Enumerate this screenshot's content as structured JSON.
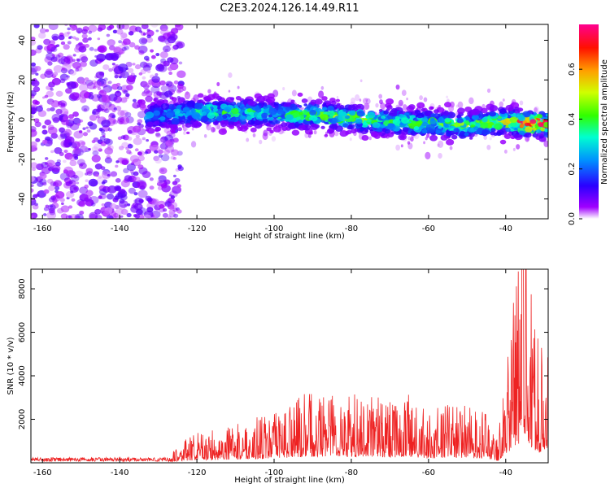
{
  "figure": {
    "title": "C2E3.2024.126.14.49.R11"
  },
  "chart_data": [
    {
      "type": "heatmap",
      "xlabel": "Height of straight line (km)",
      "ylabel": "Frequency (Hz)",
      "xlim": [
        -163,
        -29
      ],
      "ylim": [
        -50,
        48
      ],
      "xticks": [
        -160,
        -140,
        -120,
        -100,
        -80,
        -60,
        -40
      ],
      "yticks": [
        -40,
        -20,
        0,
        20,
        40
      ],
      "colorbar": {
        "label": "Normalized spectral amplitude",
        "range": [
          0,
          0.78
        ],
        "ticks": [
          "0.0",
          "0.2",
          "0.4",
          "0.6"
        ],
        "colormap": "gist_rainbow (purple to red)"
      },
      "description_points": [
        {
          "x": -150,
          "y": 5,
          "v": 0.12
        },
        {
          "x": -140,
          "y": 0,
          "v": 0.1
        },
        {
          "x": -125,
          "y": 3,
          "v": 0.22
        },
        {
          "x": -115,
          "y": 4,
          "v": 0.3
        },
        {
          "x": -100,
          "y": 3,
          "v": 0.28
        },
        {
          "x": -90,
          "y": 2,
          "v": 0.35
        },
        {
          "x": -80,
          "y": 1,
          "v": 0.38
        },
        {
          "x": -70,
          "y": -1,
          "v": 0.32
        },
        {
          "x": -60,
          "y": -2,
          "v": 0.33
        },
        {
          "x": -50,
          "y": -3,
          "v": 0.36
        },
        {
          "x": -40,
          "y": -1,
          "v": 0.4
        },
        {
          "x": -35,
          "y": -2,
          "v": 0.62
        }
      ]
    },
    {
      "type": "line",
      "xlabel": "Height of straight line (km)",
      "ylabel": "SNR (10 * v/v)",
      "xlim": [
        -163,
        -29
      ],
      "ylim": [
        0,
        8900
      ],
      "xticks": [
        -160,
        -140,
        -120,
        -100,
        -80,
        -60,
        -40
      ],
      "yticks": [
        2000,
        4000,
        6000,
        8000
      ],
      "color": "#ee2222",
      "series": [
        {
          "x": [
            -163,
            -150,
            -140,
            -130,
            -127,
            -125,
            -120,
            -115,
            -110,
            -105,
            -100,
            -95,
            -90,
            -85,
            -80,
            -75,
            -70,
            -65,
            -60,
            -55,
            -50,
            -45,
            -42,
            -40,
            -38,
            -36,
            -35,
            -33,
            -31,
            -29
          ],
          "y": [
            200,
            200,
            200,
            200,
            250,
            500,
            800,
            900,
            1000,
            1200,
            1300,
            1700,
            1900,
            2000,
            1800,
            1900,
            1600,
            1800,
            1300,
            1600,
            1500,
            1300,
            600,
            2800,
            4500,
            6500,
            8500,
            4000,
            3000,
            4500
          ]
        }
      ]
    }
  ]
}
